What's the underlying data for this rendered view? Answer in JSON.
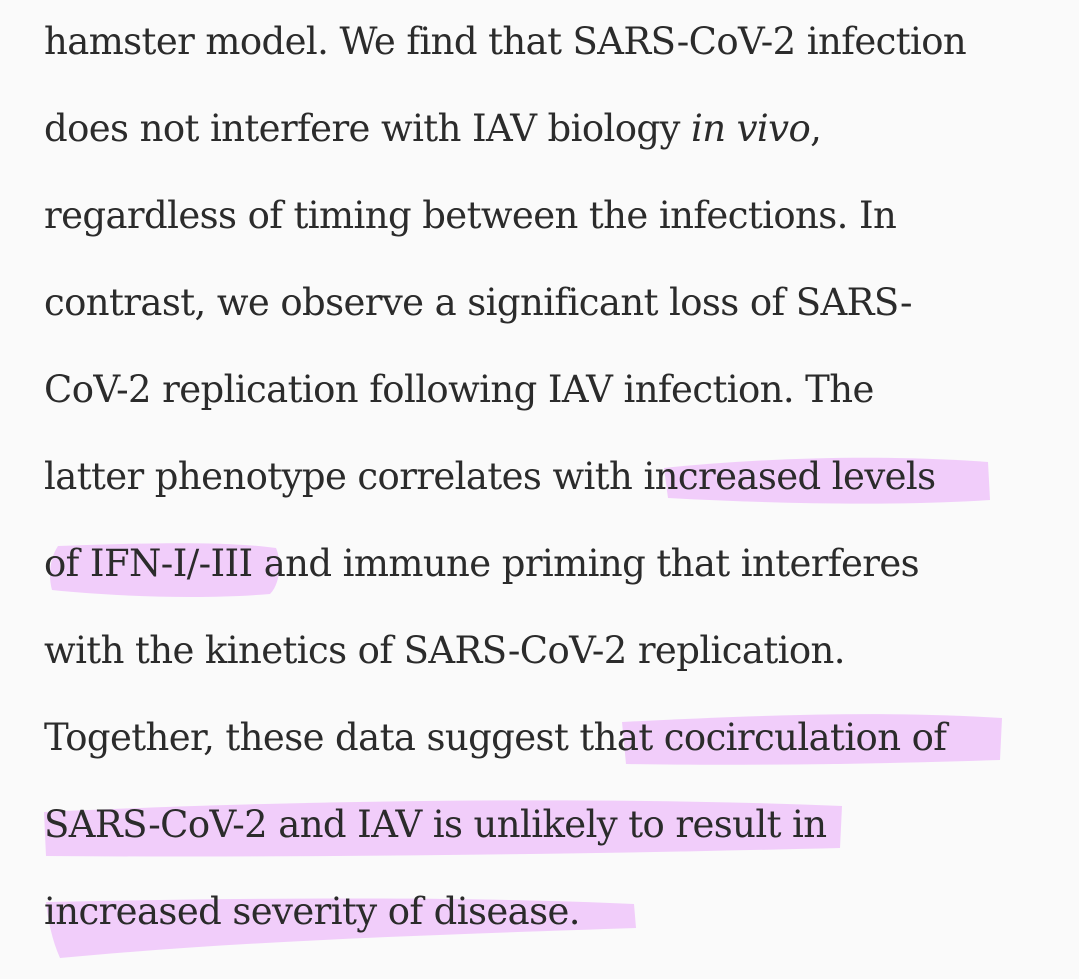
{
  "colors": {
    "background": "#fafafa",
    "text": "#2b2b2b",
    "highlighter": "#f0c8fa"
  },
  "paragraph": {
    "line1": "hamster model. We find that SARS-CoV-2 infection",
    "line2_before": "does not interfere with IAV biology ",
    "line2_italic": "in vivo",
    "line2_after": ",",
    "line3": "regardless of timing between the infections. In",
    "line4": "contrast, we observe a significant loss of SARS-",
    "line5": "CoV-2 replication following IAV infection. The",
    "line6": "latter phenotype correlates with increased levels",
    "line7": "of IFN-I/-III and immune priming that interferes",
    "line8": "with the kinetics of SARS-CoV-2 replication.",
    "line9": "Together, these data suggest that cocirculation of",
    "line10": "SARS-CoV-2 and IAV is unlikely to result in",
    "line11": "increased severity of disease."
  }
}
